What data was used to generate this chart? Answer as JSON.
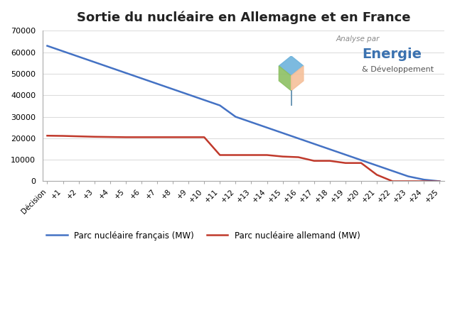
{
  "title": "Sortie du nucléaire en Allemagne et en France",
  "x_labels": [
    "Décision",
    "+1",
    "+2",
    "+3",
    "+4",
    "+5",
    "+6",
    "+7",
    "+8",
    "+9",
    "+10",
    "+11",
    "+12",
    "+13",
    "+14",
    "+15",
    "+16",
    "+17",
    "+18",
    "+19",
    "+20",
    "+21",
    "+22",
    "+23",
    "+24",
    "+25"
  ],
  "french_values": [
    63000,
    60480,
    57960,
    55440,
    52920,
    50400,
    47880,
    45360,
    42840,
    40320,
    37800,
    35280,
    30000,
    27480,
    24960,
    22440,
    19920,
    17400,
    14880,
    12360,
    9840,
    7320,
    4800,
    2280,
    760,
    0
  ],
  "german_values": [
    21200,
    21100,
    20900,
    20700,
    20600,
    20500,
    20500,
    20500,
    20500,
    20500,
    20500,
    12200,
    12200,
    12200,
    12200,
    11500,
    11200,
    9500,
    9500,
    8500,
    8500,
    3000,
    0,
    0,
    0,
    -100
  ],
  "french_color": "#4472C4",
  "german_color": "#C0392B",
  "french_label": "Parc nucléaire français (MW)",
  "german_label": "Parc nucléaire allemand (MW)",
  "ylim": [
    0,
    70000
  ],
  "yticks": [
    0,
    10000,
    20000,
    30000,
    40000,
    50000,
    60000,
    70000
  ],
  "title_fontsize": 13,
  "annotation_text": "Analyse par",
  "energie_text": "Energie",
  "dev_text": "& Développement"
}
